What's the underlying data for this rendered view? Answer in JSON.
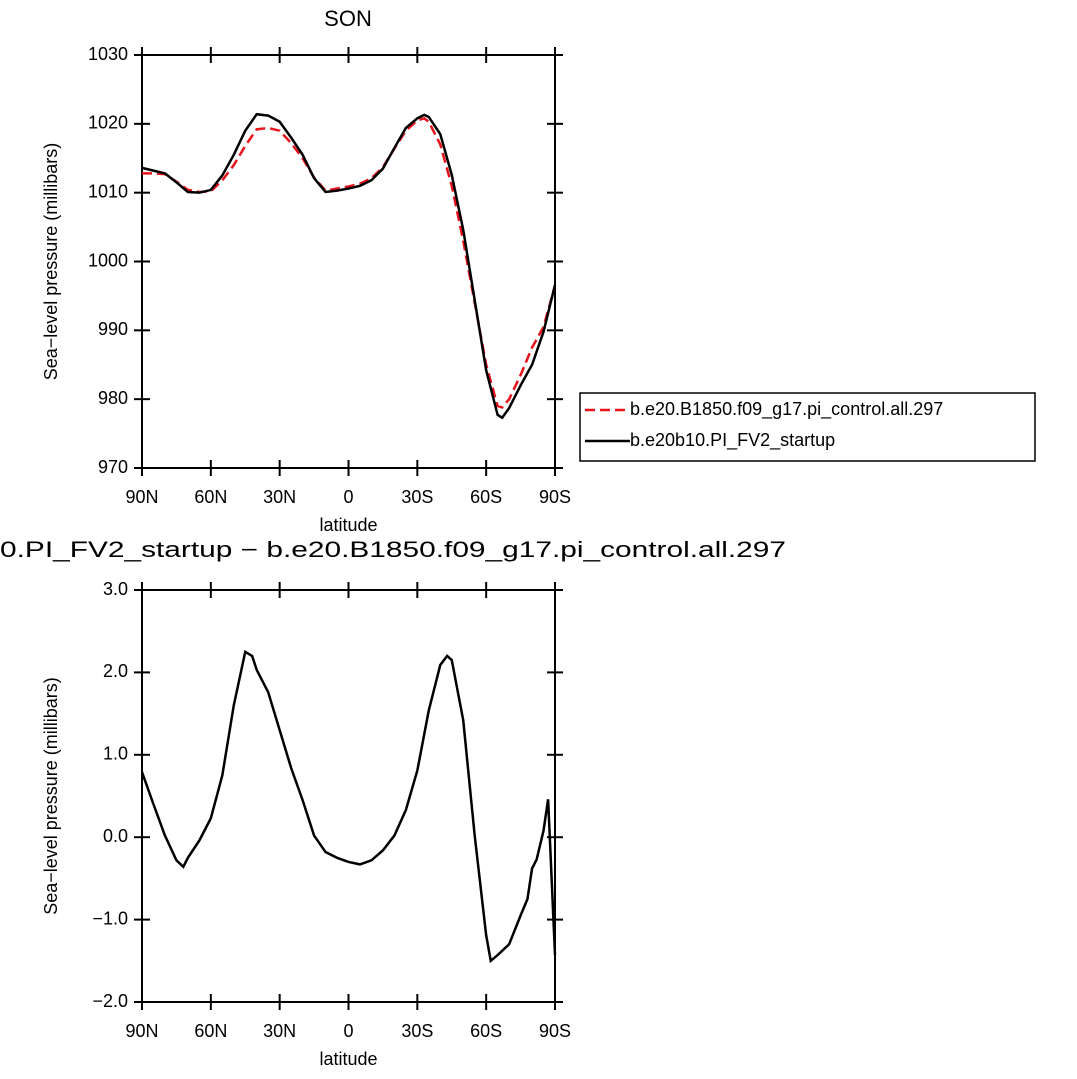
{
  "chart_data": [
    {
      "type": "line",
      "title": "SON",
      "xlabel": "latitude",
      "ylabel": "Sea−level pressure (millibars)",
      "x": [
        90,
        85,
        80,
        75,
        70,
        65,
        60,
        55,
        50,
        45,
        40,
        35,
        30,
        25,
        20,
        15,
        10,
        5,
        0,
        -5,
        -10,
        -15,
        -20,
        -25,
        -30,
        -33,
        -35,
        -40,
        -45,
        -50,
        -55,
        -60,
        -65,
        -67,
        -70,
        -75,
        -80,
        -85,
        -90
      ],
      "series": [
        {
          "name": "b.e20.B1850.f09_g17.pi_control.all.297",
          "color": "#e8141c",
          "dash": true,
          "values": [
            1012.8,
            1012.8,
            1012.7,
            1011.6,
            1010.4,
            1010.1,
            1010.2,
            1011.8,
            1014.0,
            1016.8,
            1019.2,
            1019.4,
            1019.0,
            1017.2,
            1015.0,
            1012.2,
            1010.3,
            1010.6,
            1010.9,
            1011.3,
            1012.1,
            1013.7,
            1016.4,
            1019.0,
            1020.5,
            1020.8,
            1020.3,
            1017.0,
            1011.0,
            1003.0,
            994.0,
            985.0,
            979.0,
            978.8,
            980.0,
            983.5,
            987.5,
            990.5,
            996.5
          ]
        },
        {
          "name": "b.e20b10.PI_FV2_startup",
          "color": "#000000",
          "dash": false,
          "values": [
            1013.6,
            1013.2,
            1012.8,
            1011.5,
            1010.1,
            1010.0,
            1010.4,
            1012.5,
            1015.5,
            1019.0,
            1021.4,
            1021.2,
            1020.3,
            1018.0,
            1015.5,
            1012.1,
            1010.1,
            1010.3,
            1010.6,
            1011.0,
            1011.8,
            1013.5,
            1016.5,
            1019.4,
            1020.8,
            1021.3,
            1021.0,
            1018.5,
            1012.6,
            1004.6,
            994.4,
            984.2,
            977.7,
            977.3,
            978.7,
            982.0,
            985.0,
            989.8,
            996.6
          ]
        }
      ],
      "xlim": [
        90,
        -90
      ],
      "xticks": [
        {
          "value": 90,
          "label": "90N"
        },
        {
          "value": 60,
          "label": "60N"
        },
        {
          "value": 30,
          "label": "30N"
        },
        0,
        {
          "value": -30,
          "label": "30S"
        },
        {
          "value": -60,
          "label": "60S"
        },
        {
          "value": -90,
          "label": "90S"
        }
      ],
      "ylim": [
        970,
        1030
      ],
      "yticks": [
        970,
        980,
        990,
        1000,
        1010,
        1020,
        1030
      ],
      "legend": "right"
    },
    {
      "type": "line",
      "title": "0.PI_FV2_startup − b.e20.B1850.f09_g17.pi_control.all.297",
      "xlabel": "latitude",
      "ylabel": "Sea−level pressure (millibars)",
      "x": [
        90,
        85,
        80,
        75,
        72,
        70,
        65,
        60,
        55,
        50,
        45,
        42,
        40,
        35,
        30,
        25,
        20,
        15,
        10,
        5,
        0,
        -5,
        -10,
        -15,
        -20,
        -25,
        -30,
        -35,
        -40,
        -43,
        -45,
        -50,
        -55,
        -60,
        -62,
        -65,
        -70,
        -75,
        -78,
        -80,
        -82,
        -85,
        -87,
        -90
      ],
      "color": "#000000",
      "values": [
        0.79,
        0.4,
        0.02,
        -0.28,
        -0.36,
        -0.25,
        -0.04,
        0.23,
        0.75,
        1.6,
        2.25,
        2.2,
        2.03,
        1.76,
        1.3,
        0.84,
        0.45,
        0.02,
        -0.18,
        -0.25,
        -0.3,
        -0.33,
        -0.28,
        -0.16,
        0.02,
        0.33,
        0.81,
        1.54,
        2.09,
        2.2,
        2.15,
        1.42,
        0.02,
        -1.19,
        -1.5,
        -1.43,
        -1.3,
        -0.95,
        -0.75,
        -0.38,
        -0.27,
        0.08,
        0.46,
        -1.43
      ],
      "xlim": [
        90,
        -90
      ],
      "xticks": [
        {
          "value": 90,
          "label": "90N"
        },
        {
          "value": 60,
          "label": "60N"
        },
        {
          "value": 30,
          "label": "30N"
        },
        0,
        {
          "value": -30,
          "label": "30S"
        },
        {
          "value": -60,
          "label": "60S"
        },
        {
          "value": -90,
          "label": "90S"
        }
      ],
      "ylim": [
        -2,
        3
      ],
      "yticks": [
        {
          "value": -2,
          "label": "−2.0"
        },
        {
          "value": -1,
          "label": "−1.0"
        },
        {
          "value": 0,
          "label": "0.0"
        },
        {
          "value": 1,
          "label": "1.0"
        },
        {
          "value": 2,
          "label": "2.0"
        },
        {
          "value": 3,
          "label": "3.0"
        }
      ]
    }
  ]
}
